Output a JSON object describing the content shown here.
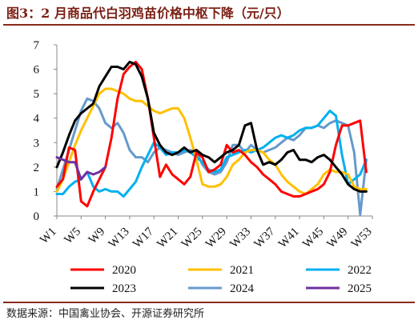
{
  "header": {
    "title": "图3：2 月商品代白羽鸡苗价格中枢下降（元/只）"
  },
  "footer": {
    "source": "数据来源：中国禽业协会、开源证券研究所"
  },
  "chart_data": {
    "type": "line",
    "title": "",
    "xlabel": "",
    "ylabel": "",
    "ylim": [
      0,
      7
    ],
    "xlim": [
      1,
      53
    ],
    "yticks": [
      0,
      1,
      2,
      3,
      4,
      5,
      6,
      7
    ],
    "xticks": [
      {
        "week": 1,
        "label": "W1"
      },
      {
        "week": 5,
        "label": "W5"
      },
      {
        "week": 9,
        "label": "W9"
      },
      {
        "week": 13,
        "label": "W13"
      },
      {
        "week": 17,
        "label": "W17"
      },
      {
        "week": 21,
        "label": "W21"
      },
      {
        "week": 25,
        "label": "W25"
      },
      {
        "week": 29,
        "label": "W29"
      },
      {
        "week": 33,
        "label": "W33"
      },
      {
        "week": 37,
        "label": "W37"
      },
      {
        "week": 41,
        "label": "W41"
      },
      {
        "week": 45,
        "label": "W45"
      },
      {
        "week": 49,
        "label": "W49"
      },
      {
        "week": 53,
        "label": "W53"
      }
    ],
    "grid": false,
    "legend_position": "bottom",
    "series": [
      {
        "name": "2020",
        "color": "#ff0000",
        "x": [
          1,
          2,
          3,
          4,
          5,
          6,
          7,
          8,
          9,
          10,
          11,
          12,
          13,
          14,
          15,
          16,
          17,
          18,
          19,
          20,
          21,
          22,
          23,
          24,
          25,
          26,
          27,
          28,
          29,
          30,
          31,
          32,
          33,
          34,
          35,
          36,
          37,
          38,
          39,
          40,
          41,
          42,
          43,
          44,
          45,
          46,
          47,
          48,
          49,
          50,
          51,
          52
        ],
        "values": [
          1.2,
          1.5,
          2.8,
          2.7,
          0.6,
          0.4,
          1.0,
          1.5,
          2.0,
          3.2,
          4.8,
          5.8,
          6.1,
          6.3,
          6.0,
          4.8,
          3.2,
          1.6,
          2.1,
          1.7,
          1.5,
          1.3,
          1.6,
          2.6,
          2.4,
          1.8,
          1.9,
          2.1,
          2.9,
          2.6,
          2.7,
          2.5,
          2.2,
          2.0,
          1.7,
          1.5,
          1.3,
          1.0,
          0.9,
          0.8,
          0.8,
          0.9,
          1.0,
          1.1,
          1.3,
          1.8,
          2.9,
          3.7,
          3.7,
          3.8,
          3.9,
          1.8
        ]
      },
      {
        "name": "2021",
        "color": "#ffc000",
        "x": [
          1,
          2,
          3,
          4,
          5,
          6,
          7,
          8,
          9,
          10,
          11,
          12,
          13,
          14,
          15,
          16,
          17,
          18,
          19,
          20,
          21,
          22,
          23,
          24,
          25,
          26,
          27,
          28,
          29,
          30,
          31,
          32,
          33,
          34,
          35,
          36,
          37,
          38,
          39,
          40,
          41,
          42,
          43,
          44,
          45,
          46,
          47,
          48,
          49,
          50,
          51,
          52
        ],
        "values": [
          1.0,
          1.5,
          2.2,
          2.9,
          3.5,
          4.0,
          4.5,
          5.0,
          5.2,
          5.2,
          5.1,
          5.0,
          4.8,
          4.7,
          4.7,
          4.5,
          4.3,
          4.2,
          4.3,
          4.4,
          4.4,
          4.0,
          3.2,
          2.3,
          1.3,
          1.2,
          1.2,
          1.3,
          1.6,
          2.1,
          2.3,
          2.6,
          2.7,
          2.7,
          2.6,
          2.3,
          2.1,
          1.7,
          1.4,
          1.2,
          1.0,
          0.9,
          1.1,
          1.3,
          1.7,
          1.9,
          1.8,
          1.8,
          1.7,
          1.2,
          1.1,
          1.1
        ]
      },
      {
        "name": "2022",
        "color": "#00b0f0",
        "x": [
          1,
          2,
          3,
          4,
          5,
          6,
          7,
          8,
          9,
          10,
          11,
          12,
          13,
          14,
          15,
          16,
          17,
          18,
          19,
          20,
          21,
          22,
          23,
          24,
          25,
          26,
          27,
          28,
          29,
          30,
          31,
          32,
          33,
          34,
          35,
          36,
          37,
          38,
          39,
          40,
          41,
          42,
          43,
          44,
          45,
          46,
          47,
          48,
          49,
          50,
          51,
          52
        ],
        "values": [
          0.9,
          0.9,
          1.2,
          1.4,
          1.5,
          1.8,
          1.2,
          1.0,
          1.1,
          1.0,
          1.0,
          0.8,
          1.1,
          1.4,
          2.0,
          2.5,
          3.0,
          2.8,
          2.5,
          2.6,
          2.6,
          2.7,
          2.6,
          2.4,
          2.2,
          1.9,
          1.8,
          1.9,
          2.4,
          2.5,
          2.6,
          2.7,
          2.6,
          2.7,
          2.8,
          3.0,
          3.2,
          3.3,
          3.2,
          3.3,
          3.5,
          3.6,
          3.6,
          3.7,
          4.0,
          4.3,
          4.1,
          2.5,
          1.3,
          1.5,
          1.7,
          2.3
        ]
      },
      {
        "name": "2023",
        "color": "#000000",
        "x": [
          1,
          2,
          3,
          4,
          5,
          6,
          7,
          8,
          9,
          10,
          11,
          12,
          13,
          14,
          15,
          16,
          17,
          18,
          19,
          20,
          21,
          22,
          23,
          24,
          25,
          26,
          27,
          28,
          29,
          30,
          31,
          32,
          33,
          34,
          35,
          36,
          37,
          38,
          39,
          40,
          41,
          42,
          43,
          44,
          45,
          46,
          47,
          48,
          49,
          50,
          51,
          52
        ],
        "values": [
          2.0,
          2.6,
          3.3,
          3.9,
          4.2,
          4.4,
          4.6,
          5.3,
          5.7,
          6.1,
          6.1,
          6.0,
          6.3,
          6.2,
          5.7,
          4.8,
          3.4,
          2.9,
          2.6,
          2.5,
          2.6,
          2.8,
          2.6,
          2.7,
          2.5,
          2.4,
          2.2,
          2.4,
          2.6,
          2.7,
          2.9,
          3.7,
          3.8,
          2.7,
          2.1,
          2.2,
          2.1,
          2.3,
          2.6,
          2.7,
          2.3,
          2.3,
          2.2,
          2.4,
          2.5,
          2.3,
          2.0,
          1.7,
          1.3,
          1.1,
          1.0,
          1.0
        ]
      },
      {
        "name": "2024",
        "color": "#6699cc",
        "x": [
          1,
          2,
          3,
          4,
          5,
          6,
          7,
          8,
          9,
          10,
          11,
          12,
          13,
          14,
          15,
          16,
          17,
          18,
          19,
          20,
          21,
          22,
          23,
          24,
          25,
          26,
          27,
          28,
          29,
          30,
          31,
          32,
          33,
          34,
          35,
          36,
          37,
          38,
          39,
          40,
          41,
          42,
          43,
          44,
          45,
          46,
          47,
          48,
          49,
          50,
          51,
          52
        ],
        "values": [
          1.1,
          1.9,
          2.7,
          3.5,
          4.3,
          4.8,
          4.7,
          4.4,
          3.8,
          3.6,
          3.8,
          3.4,
          2.7,
          2.4,
          2.4,
          2.2,
          2.6,
          2.8,
          2.7,
          2.6,
          2.5,
          2.6,
          2.7,
          2.6,
          2.1,
          1.8,
          1.7,
          1.8,
          2.2,
          2.9,
          2.9,
          2.6,
          2.9,
          2.7,
          2.6,
          2.7,
          2.8,
          3.0,
          3.2,
          3.1,
          3.3,
          3.6,
          3.6,
          3.7,
          3.6,
          3.8,
          3.9,
          3.8,
          3.7,
          2.6,
          0.05,
          2.3
        ]
      },
      {
        "name": "2025",
        "color": "#7030a0",
        "x": [
          1,
          2,
          3,
          4,
          5,
          6,
          7,
          8,
          9
        ],
        "values": [
          2.4,
          2.3,
          2.2,
          2.2,
          1.5,
          1.8,
          1.7,
          1.8,
          2.0
        ]
      }
    ]
  }
}
